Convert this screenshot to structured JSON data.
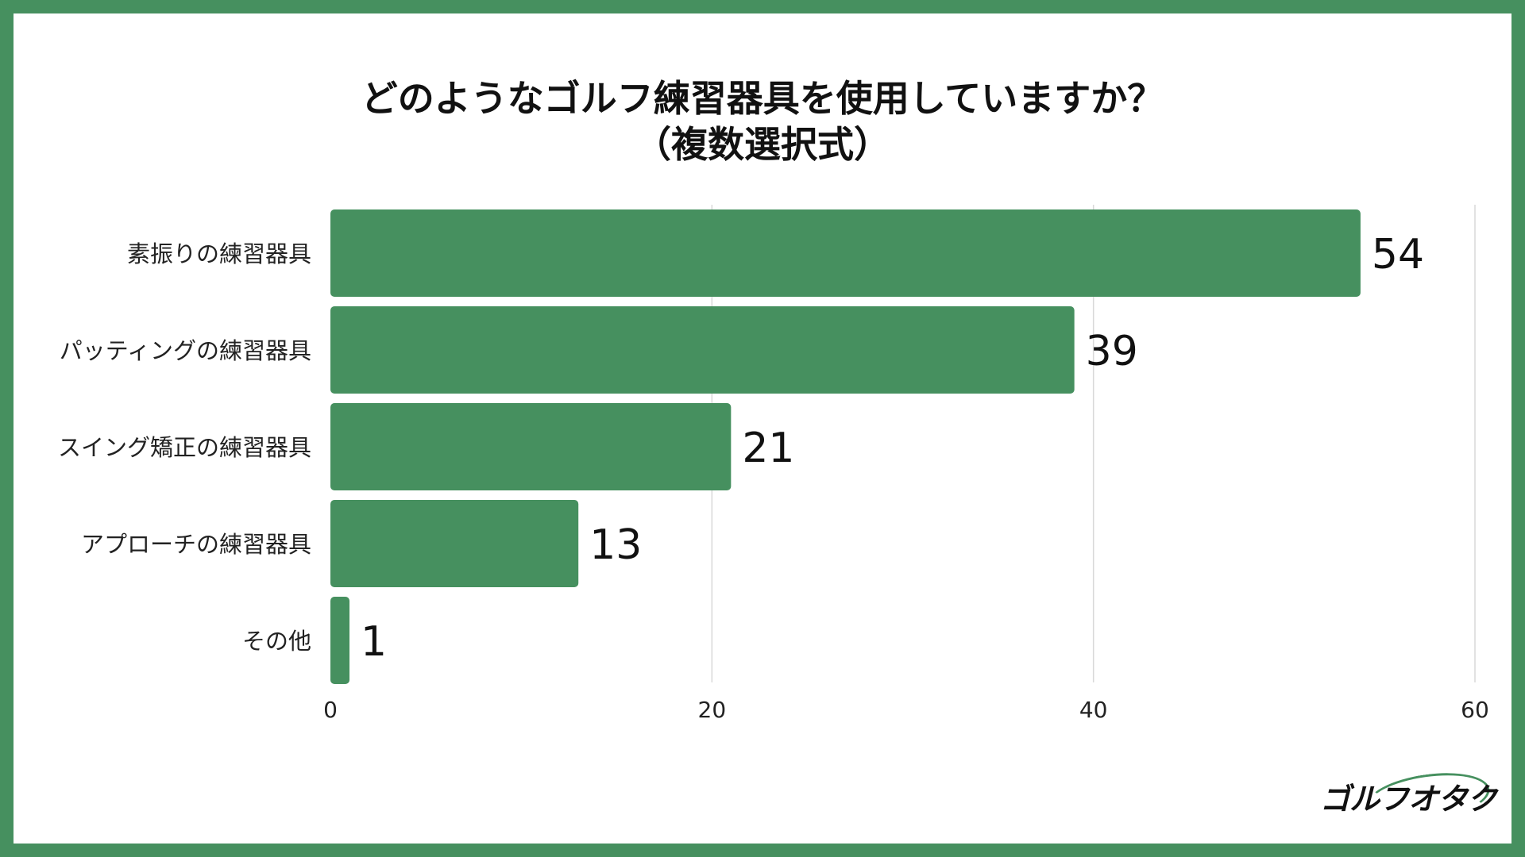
{
  "chart_data": {
    "type": "bar",
    "orientation": "horizontal",
    "title": "どのようなゴルフ練習器具を使用していますか？",
    "subtitle": "（複数選択式）",
    "categories": [
      "素振りの練習器具",
      "パッティングの練習器具",
      "スイング矯正の練習器具",
      "アプローチの練習器具",
      "その他"
    ],
    "values": [
      54,
      39,
      21,
      13,
      1
    ],
    "xlim": [
      0,
      60
    ],
    "xticks": [
      0,
      20,
      40,
      60
    ],
    "grid": true,
    "bar_color": "#46905f"
  },
  "logo_text": "ゴルフオタク"
}
